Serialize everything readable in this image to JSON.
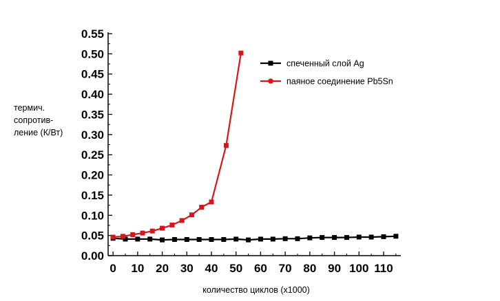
{
  "chart_data": {
    "type": "line",
    "title": "",
    "xlabel": "количество циклов (x1000)",
    "ylabel_lines": [
      "термич.",
      "сопротив-",
      "ление (К/Вт)"
    ],
    "xlim": [
      -2,
      117
    ],
    "ylim": [
      0,
      0.55
    ],
    "x_ticks": [
      0,
      10,
      20,
      30,
      40,
      50,
      60,
      70,
      80,
      90,
      100,
      110
    ],
    "x_tick_labels": [
      "0",
      "10",
      "20",
      "30",
      "40",
      "50",
      "60",
      "70",
      "80",
      "90",
      "100",
      "110"
    ],
    "y_ticks": [
      0,
      0.05,
      0.1,
      0.15,
      0.2,
      0.25,
      0.3,
      0.35,
      0.4,
      0.45,
      0.5,
      0.55
    ],
    "y_tick_labels": [
      "0.00",
      "0.05",
      "0.10",
      "0.15",
      "0.20",
      "0.25",
      "0.30",
      "0.35",
      "0.40",
      "0.45",
      "0.50",
      "0.55"
    ],
    "grid": false,
    "legend_position": "top-right",
    "series": [
      {
        "name": "спеченный слой Ag",
        "color": "#000000",
        "marker": "square",
        "x": [
          0,
          5,
          10,
          15,
          20,
          25,
          30,
          35,
          40,
          45,
          50,
          55,
          60,
          65,
          70,
          75,
          80,
          85,
          90,
          95,
          100,
          105,
          110,
          115
        ],
        "y": [
          0.043,
          0.041,
          0.041,
          0.041,
          0.039,
          0.04,
          0.04,
          0.04,
          0.04,
          0.04,
          0.041,
          0.039,
          0.041,
          0.041,
          0.042,
          0.042,
          0.044,
          0.045,
          0.045,
          0.045,
          0.046,
          0.046,
          0.047,
          0.048
        ]
      },
      {
        "name": "паяное соединение Pb5Sn",
        "color": "#d8151b",
        "marker": "square",
        "x": [
          0,
          4,
          8,
          12,
          16,
          20,
          24,
          28,
          32,
          36,
          40,
          46,
          52
        ],
        "y": [
          0.046,
          0.048,
          0.052,
          0.056,
          0.061,
          0.068,
          0.076,
          0.087,
          0.101,
          0.12,
          0.133,
          0.273,
          0.502
        ]
      }
    ]
  }
}
